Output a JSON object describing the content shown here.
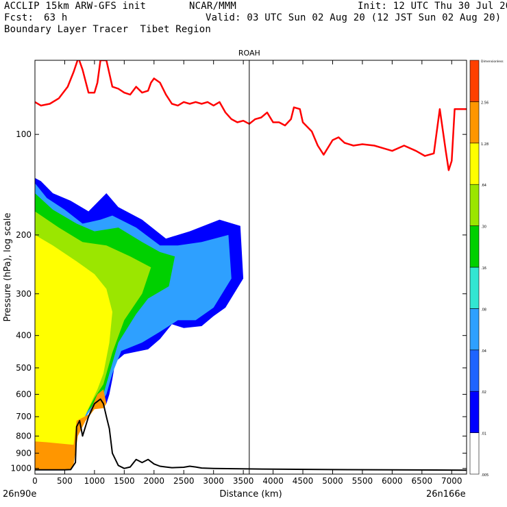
{
  "header": {
    "model_line": "ACCLIP 15km ARW-GFS init",
    "org": "NCAR/MMM",
    "init": "Init: 12 UTC Thu 30 Jul 20",
    "fcst_label": "Fcst:",
    "fcst_value": "63 h",
    "valid": "Valid: 03 UTC Sun 02 Aug 20 (12 JST Sun 02 Aug 20)",
    "field": "Boundary Layer Tracer  Tibet Region"
  },
  "chart_data": {
    "type": "cross-section",
    "marker_label": "ROAH",
    "marker_x_km": 3600,
    "xlabel": "Distance (km)",
    "ylabel": "Pressure (hPa), log scale",
    "x_ticks": [
      0,
      500,
      1000,
      1500,
      2000,
      2500,
      3000,
      3500,
      4000,
      4500,
      5000,
      5500,
      6000,
      6500,
      7000
    ],
    "xlim": [
      0,
      7250
    ],
    "ylim": [
      1040,
      60
    ],
    "y_ticks": [
      {
        "value": 100,
        "label": "100"
      },
      {
        "value": 200,
        "label": "200"
      },
      {
        "value": 300,
        "label": "300"
      },
      {
        "value": 400,
        "label": "400"
      },
      {
        "value": 500,
        "label": "500"
      },
      {
        "value": 600,
        "label": "600"
      },
      {
        "value": 700,
        "label": "700"
      },
      {
        "value": 800,
        "label": "800"
      },
      {
        "value": 900,
        "label": "900"
      },
      {
        "value": 1000,
        "label": "1000"
      }
    ],
    "start_label": "26n90e",
    "end_label": "26n166e",
    "colorbar": {
      "top_label": "Dimensionless",
      "bands": [
        {
          "color": "#ffffff",
          "label": ".005"
        },
        {
          "color": "#0000ff",
          "label": ".01"
        },
        {
          "color": "#1e64ff",
          "label": ".02"
        },
        {
          "color": "#2ea0ff",
          "label": ".04"
        },
        {
          "color": "#32e6d2",
          "label": ".08"
        },
        {
          "color": "#00d000",
          "label": ".16"
        },
        {
          "color": "#9be600",
          "label": ".30"
        },
        {
          "color": "#ffff00",
          "label": ".64"
        },
        {
          "color": "#ff9600",
          "label": "1.28"
        },
        {
          "color": "#ff4000",
          "label": "2.56"
        }
      ]
    },
    "tropopause_line": {
      "color": "#ff0000",
      "points": [
        [
          0,
          80
        ],
        [
          100,
          82
        ],
        [
          250,
          81
        ],
        [
          400,
          78
        ],
        [
          550,
          72
        ],
        [
          650,
          65
        ],
        [
          730,
          59
        ],
        [
          800,
          64
        ],
        [
          900,
          75
        ],
        [
          1000,
          75
        ],
        [
          1050,
          70
        ],
        [
          1100,
          60
        ],
        [
          1200,
          60
        ],
        [
          1300,
          72
        ],
        [
          1400,
          73
        ],
        [
          1500,
          75
        ],
        [
          1600,
          76
        ],
        [
          1700,
          72
        ],
        [
          1800,
          75
        ],
        [
          1900,
          74
        ],
        [
          1950,
          70
        ],
        [
          2000,
          68
        ],
        [
          2100,
          70
        ],
        [
          2200,
          76
        ],
        [
          2300,
          81
        ],
        [
          2400,
          82
        ],
        [
          2500,
          80
        ],
        [
          2600,
          81
        ],
        [
          2700,
          80
        ],
        [
          2800,
          81
        ],
        [
          2900,
          80
        ],
        [
          3000,
          82
        ],
        [
          3100,
          80
        ],
        [
          3200,
          86
        ],
        [
          3300,
          90
        ],
        [
          3400,
          92
        ],
        [
          3500,
          91
        ],
        [
          3600,
          93
        ],
        [
          3700,
          90
        ],
        [
          3800,
          89
        ],
        [
          3900,
          86
        ],
        [
          4000,
          92
        ],
        [
          4100,
          92
        ],
        [
          4200,
          94
        ],
        [
          4300,
          90
        ],
        [
          4350,
          83
        ],
        [
          4450,
          84
        ],
        [
          4500,
          92
        ],
        [
          4650,
          98
        ],
        [
          4750,
          108
        ],
        [
          4850,
          115
        ],
        [
          5000,
          104
        ],
        [
          5100,
          102
        ],
        [
          5200,
          106
        ],
        [
          5350,
          108
        ],
        [
          5500,
          107
        ],
        [
          5700,
          108
        ],
        [
          5850,
          110
        ],
        [
          6000,
          112
        ],
        [
          6200,
          108
        ],
        [
          6400,
          112
        ],
        [
          6550,
          116
        ],
        [
          6700,
          114
        ],
        [
          6800,
          84
        ],
        [
          6900,
          112
        ],
        [
          6950,
          128
        ],
        [
          7000,
          120
        ],
        [
          7050,
          84
        ],
        [
          7250,
          84
        ]
      ]
    },
    "terrain_line": {
      "color": "#000000",
      "points": [
        [
          0,
          1010
        ],
        [
          300,
          1010
        ],
        [
          500,
          1010
        ],
        [
          600,
          1008
        ],
        [
          680,
          960
        ],
        [
          700,
          750
        ],
        [
          750,
          720
        ],
        [
          800,
          800
        ],
        [
          900,
          700
        ],
        [
          1000,
          640
        ],
        [
          1100,
          620
        ],
        [
          1150,
          640
        ],
        [
          1200,
          700
        ],
        [
          1250,
          760
        ],
        [
          1300,
          900
        ],
        [
          1400,
          980
        ],
        [
          1500,
          1000
        ],
        [
          1600,
          990
        ],
        [
          1700,
          940
        ],
        [
          1800,
          960
        ],
        [
          1900,
          940
        ],
        [
          2000,
          970
        ],
        [
          2100,
          985
        ],
        [
          2200,
          990
        ],
        [
          2300,
          995
        ],
        [
          2500,
          992
        ],
        [
          2600,
          985
        ],
        [
          2700,
          990
        ],
        [
          2800,
          997
        ],
        [
          3000,
          1000
        ],
        [
          4000,
          1005
        ],
        [
          5000,
          1008
        ],
        [
          6000,
          1010
        ],
        [
          7250,
          1012
        ]
      ]
    },
    "tracer_regions": [
      {
        "color": "#0000ff",
        "points": [
          [
            0,
            135
          ],
          [
            100,
            138
          ],
          [
            300,
            150
          ],
          [
            600,
            158
          ],
          [
            900,
            170
          ],
          [
            1200,
            150
          ],
          [
            1400,
            165
          ],
          [
            1800,
            180
          ],
          [
            2200,
            205
          ],
          [
            2600,
            195
          ],
          [
            3100,
            180
          ],
          [
            3450,
            188
          ],
          [
            3500,
            270
          ],
          [
            3200,
            330
          ],
          [
            3000,
            350
          ],
          [
            2800,
            375
          ],
          [
            2500,
            380
          ],
          [
            2300,
            370
          ],
          [
            2100,
            410
          ],
          [
            1900,
            440
          ],
          [
            1500,
            455
          ],
          [
            1350,
            480
          ],
          [
            1300,
            540
          ],
          [
            1250,
            600
          ],
          [
            1200,
            640
          ],
          [
            1150,
            640
          ],
          [
            1100,
            625
          ],
          [
            1000,
            650
          ],
          [
            900,
            680
          ],
          [
            800,
            740
          ],
          [
            700,
            780
          ],
          [
            650,
            860
          ],
          [
            550,
            940
          ],
          [
            450,
            1000
          ],
          [
            0,
            1008
          ]
        ]
      },
      {
        "color": "#2ea0ff",
        "points": [
          [
            0,
            140
          ],
          [
            200,
            155
          ],
          [
            500,
            168
          ],
          [
            800,
            185
          ],
          [
            1100,
            180
          ],
          [
            1300,
            175
          ],
          [
            1700,
            190
          ],
          [
            2100,
            215
          ],
          [
            2400,
            215
          ],
          [
            2800,
            210
          ],
          [
            3250,
            200
          ],
          [
            3300,
            270
          ],
          [
            3000,
            330
          ],
          [
            2700,
            360
          ],
          [
            2400,
            360
          ],
          [
            2100,
            390
          ],
          [
            1800,
            420
          ],
          [
            1450,
            445
          ],
          [
            1300,
            520
          ],
          [
            1200,
            600
          ],
          [
            1100,
            640
          ],
          [
            950,
            665
          ],
          [
            800,
            720
          ],
          [
            650,
            850
          ],
          [
            500,
            960
          ],
          [
            0,
            1000
          ]
        ]
      },
      {
        "color": "#00d000",
        "points": [
          [
            0,
            150
          ],
          [
            300,
            168
          ],
          [
            700,
            185
          ],
          [
            1000,
            195
          ],
          [
            1400,
            190
          ],
          [
            1800,
            210
          ],
          [
            2100,
            225
          ],
          [
            2350,
            232
          ],
          [
            2250,
            285
          ],
          [
            1900,
            310
          ],
          [
            1700,
            345
          ],
          [
            1400,
            420
          ],
          [
            1250,
            520
          ],
          [
            1150,
            600
          ],
          [
            1000,
            640
          ],
          [
            800,
            700
          ],
          [
            650,
            820
          ],
          [
            500,
            930
          ],
          [
            0,
            995
          ]
        ]
      },
      {
        "color": "#9be600",
        "points": [
          [
            0,
            170
          ],
          [
            400,
            190
          ],
          [
            800,
            210
          ],
          [
            1200,
            215
          ],
          [
            1600,
            232
          ],
          [
            1950,
            250
          ],
          [
            1800,
            300
          ],
          [
            1500,
            360
          ],
          [
            1300,
            450
          ],
          [
            1150,
            560
          ],
          [
            1000,
            615
          ],
          [
            850,
            690
          ],
          [
            700,
            800
          ],
          [
            550,
            920
          ],
          [
            0,
            990
          ]
        ]
      },
      {
        "color": "#ffff00",
        "points": [
          [
            0,
            200
          ],
          [
            300,
            215
          ],
          [
            700,
            240
          ],
          [
            1000,
            262
          ],
          [
            1200,
            290
          ],
          [
            1300,
            340
          ],
          [
            1250,
            420
          ],
          [
            1150,
            520
          ],
          [
            1050,
            580
          ],
          [
            900,
            660
          ],
          [
            750,
            760
          ],
          [
            600,
            900
          ],
          [
            0,
            990
          ]
        ]
      },
      {
        "color": "#ff9600",
        "points": [
          [
            0,
            830
          ],
          [
            200,
            835
          ],
          [
            500,
            845
          ],
          [
            650,
            850
          ],
          [
            700,
            720
          ],
          [
            900,
            690
          ],
          [
            1050,
            600
          ],
          [
            1150,
            580
          ],
          [
            1200,
            640
          ],
          [
            1150,
            660
          ],
          [
            1000,
            665
          ],
          [
            850,
            720
          ],
          [
            720,
            800
          ],
          [
            650,
            970
          ],
          [
            600,
            1008
          ],
          [
            0,
            1008
          ]
        ]
      }
    ]
  }
}
